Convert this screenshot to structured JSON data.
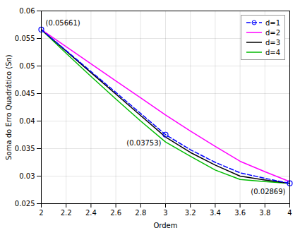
{
  "chart_data": {
    "type": "line",
    "x": [
      2,
      2.2,
      2.4,
      2.6,
      2.8,
      3,
      3.2,
      3.4,
      3.6,
      3.8,
      4
    ],
    "series": [
      {
        "name": "d=1",
        "color": "#0000FF",
        "line_style": "dashed",
        "marker": "circle",
        "marker_x": [
          2,
          3,
          4
        ],
        "values": [
          0.05661,
          0.0528,
          0.049,
          0.0452,
          0.04137,
          0.03753,
          0.0348,
          0.0325,
          0.0306,
          0.0296,
          0.02869
        ]
      },
      {
        "name": "d=2",
        "color": "#FF00FF",
        "line_style": "solid",
        "values": [
          0.05661,
          0.0535,
          0.0504,
          0.0473,
          0.0442,
          0.0411,
          0.0382,
          0.0354,
          0.0327,
          0.0308,
          0.029
        ]
      },
      {
        "name": "d=3",
        "color": "#000000",
        "line_style": "solid",
        "values": [
          0.05661,
          0.0527,
          0.0488,
          0.0449,
          0.041,
          0.0371,
          0.0343,
          0.032,
          0.03,
          0.0293,
          0.02869
        ]
      },
      {
        "name": "d=4",
        "color": "#00BB00",
        "line_style": "solid",
        "values": [
          0.05661,
          0.0523,
          0.0481,
          0.044,
          0.04,
          0.0362,
          0.0336,
          0.0311,
          0.0294,
          0.029,
          0.02869
        ]
      }
    ],
    "annotations": [
      {
        "x": 2,
        "y": 0.05661,
        "text": "(0.05661)"
      },
      {
        "x": 3,
        "y": 0.03753,
        "text": "(0.03753)"
      },
      {
        "x": 4,
        "y": 0.02869,
        "text": "(0.02869)"
      }
    ],
    "xlabel": "Ordem",
    "ylabel": "Soma do Erro Quadrático (Sn)",
    "xlim": [
      2,
      4
    ],
    "ylim": [
      0.025,
      0.06
    ],
    "xticks": [
      2,
      2.2,
      2.4,
      2.6,
      2.8,
      3,
      3.2,
      3.4,
      3.6,
      3.8,
      4
    ],
    "yticks": [
      0.025,
      0.03,
      0.035,
      0.04,
      0.045,
      0.05,
      0.055,
      0.06
    ],
    "grid": true,
    "legend": "upper right"
  }
}
